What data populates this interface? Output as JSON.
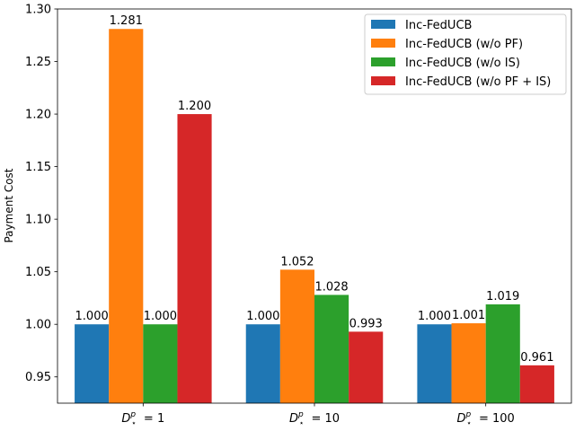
{
  "chart_data": {
    "type": "bar",
    "title": "",
    "xlabel": "",
    "ylabel": "Payment Cost",
    "ylim": [
      0.925,
      1.3
    ],
    "yticks": [
      "0.95",
      "1.00",
      "1.05",
      "1.10",
      "1.15",
      "1.20",
      "1.25",
      "1.30"
    ],
    "ytick_values": [
      0.95,
      1.0,
      1.05,
      1.1,
      1.15,
      1.2,
      1.25,
      1.3
    ],
    "grid": false,
    "legend_position": "top-right",
    "categories": [
      {
        "prefix": "D",
        "sup": "p",
        "sub": "⋆",
        "value": "1"
      },
      {
        "prefix": "D",
        "sup": "p",
        "sub": "⋆",
        "value": "10"
      },
      {
        "prefix": "D",
        "sup": "p",
        "sub": "⋆",
        "value": "100"
      }
    ],
    "series": [
      {
        "name": "Inc-FedUCB",
        "color": "#1f77b4",
        "values": [
          1.0,
          1.0,
          1.0
        ],
        "labels": [
          "1.000",
          "1.000",
          "1.000"
        ]
      },
      {
        "name": "Inc-FedUCB (w/o PF)",
        "color": "#ff7f0e",
        "values": [
          1.281,
          1.052,
          1.001
        ],
        "labels": [
          "1.281",
          "1.052",
          "1.001"
        ]
      },
      {
        "name": "Inc-FedUCB (w/o IS)",
        "color": "#2ca02c",
        "values": [
          1.0,
          1.028,
          1.019
        ],
        "labels": [
          "1.000",
          "1.028",
          "1.019"
        ]
      },
      {
        "name": "Inc-FedUCB (w/o PF + IS)",
        "color": "#d62728",
        "values": [
          1.2,
          0.993,
          0.961
        ],
        "labels": [
          "1.200",
          "0.993",
          "0.961"
        ]
      }
    ]
  }
}
